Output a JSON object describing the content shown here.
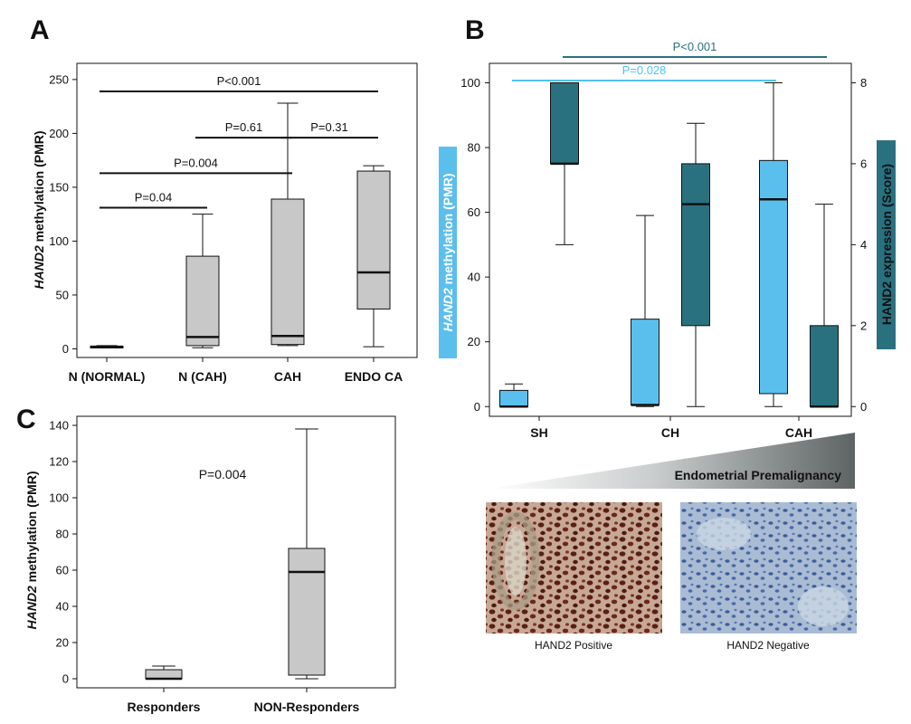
{
  "colors": {
    "box_gray": "#c8c8c8",
    "box_light_blue": "#5bbfee",
    "box_teal": "#2a7180",
    "title_light_blue": "#4fc3f0",
    "title_teal": "#2a7180",
    "line": "#111111"
  },
  "images": {
    "left_caption": "HAND2 Positive",
    "right_caption": "HAND2 Negative"
  },
  "chart_data": [
    {
      "panel": "A",
      "type": "box",
      "ylabel_italic": "HAND2",
      "ylabel_rest": " methylation (PMR)",
      "ylim": [
        -8,
        265
      ],
      "yticks": [
        "0",
        "50",
        "100",
        "150",
        "200",
        "250"
      ],
      "ytick_values": [
        0,
        50,
        100,
        150,
        200,
        250
      ],
      "categories": [
        "N (NORMAL)",
        "N (CAH)",
        "CAH",
        "ENDO CA"
      ],
      "boxes": [
        {
          "min": 1,
          "q1": 1.5,
          "median": 2,
          "q3": 2.5,
          "max": 3
        },
        {
          "min": 1,
          "q1": 3,
          "median": 11,
          "q3": 86,
          "max": 125
        },
        {
          "min": 3,
          "q1": 4,
          "median": 12,
          "q3": 139,
          "max": 228
        },
        {
          "min": 2,
          "q1": 37,
          "median": 71,
          "q3": 165,
          "max": 170
        }
      ],
      "comparisons": [
        {
          "label": "P<0.001",
          "from": 0,
          "to": 3,
          "y": 239
        },
        {
          "label": "P=0.61",
          "from": 1,
          "to": 2,
          "y": 196
        },
        {
          "label": "P=0.31",
          "from": 2,
          "to": 3,
          "y": 196
        },
        {
          "label": "P=0.004",
          "from": 0,
          "to": 2,
          "y": 163
        },
        {
          "label": "P=0.04",
          "from": 0,
          "to": 1,
          "y": 131
        }
      ]
    },
    {
      "panel": "B",
      "type": "box",
      "ylabel_left_italic": "HAND2",
      "ylabel_left_rest": " methylation (PMR)",
      "ylabel_right": "HAND2 expression (Score)",
      "ylim_left": [
        -3,
        106
      ],
      "ylim_right": [
        -0.24,
        8.48
      ],
      "yticks_left": [
        "0",
        "20",
        "40",
        "60",
        "80",
        "100"
      ],
      "ytick_values_left": [
        0,
        20,
        40,
        60,
        80,
        100
      ],
      "yticks_right": [
        "0",
        "2",
        "4",
        "6",
        "8"
      ],
      "ytick_values_right": [
        0,
        2,
        4,
        6,
        8
      ],
      "categories": [
        "SH",
        "CH",
        "CAH"
      ],
      "series": [
        {
          "name": "HAND2 methylation (PMR)",
          "axis": "left",
          "color": "#5bbfee",
          "boxes": [
            {
              "min": 0,
              "q1": 0,
              "median": 0,
              "q3": 5,
              "max": 7
            },
            {
              "min": 0,
              "q1": 0.5,
              "median": 0.5,
              "q3": 27,
              "max": 59
            },
            {
              "min": 0,
              "q1": 4,
              "median": 64,
              "q3": 76,
              "max": 100
            }
          ]
        },
        {
          "name": "HAND2 expression (Score)",
          "axis": "right",
          "color": "#2a7180",
          "boxes": [
            {
              "min": 4,
              "q1": 6,
              "median": 6,
              "q3": 8,
              "max": 8
            },
            {
              "min": 0,
              "q1": 2,
              "median": 5,
              "q3": 6,
              "max": 7
            },
            {
              "min": 0,
              "q1": 0,
              "median": 0,
              "q3": 2,
              "max": 5
            }
          ]
        }
      ],
      "comparisons": [
        {
          "label": "P<0.001",
          "color": "#2a7180"
        },
        {
          "label": "P=0.028",
          "color": "#4fc3f0"
        }
      ],
      "gradient_label": "Endometrial Premalignancy"
    },
    {
      "panel": "C",
      "type": "box",
      "ylabel_italic": "HAND2",
      "ylabel_rest": " methylation (PMR)",
      "ylim": [
        -5,
        145
      ],
      "yticks": [
        "0",
        "20",
        "40",
        "60",
        "80",
        "100",
        "120",
        "140"
      ],
      "ytick_values": [
        0,
        20,
        40,
        60,
        80,
        100,
        120,
        140
      ],
      "categories": [
        "Responders",
        "NON-Responders"
      ],
      "boxes": [
        {
          "min": 0,
          "q1": 0,
          "median": 0,
          "q3": 5,
          "max": 7
        },
        {
          "min": 0,
          "q1": 2,
          "median": 59,
          "q3": 72,
          "max": 138
        }
      ],
      "annotation": "P=0.004"
    }
  ]
}
